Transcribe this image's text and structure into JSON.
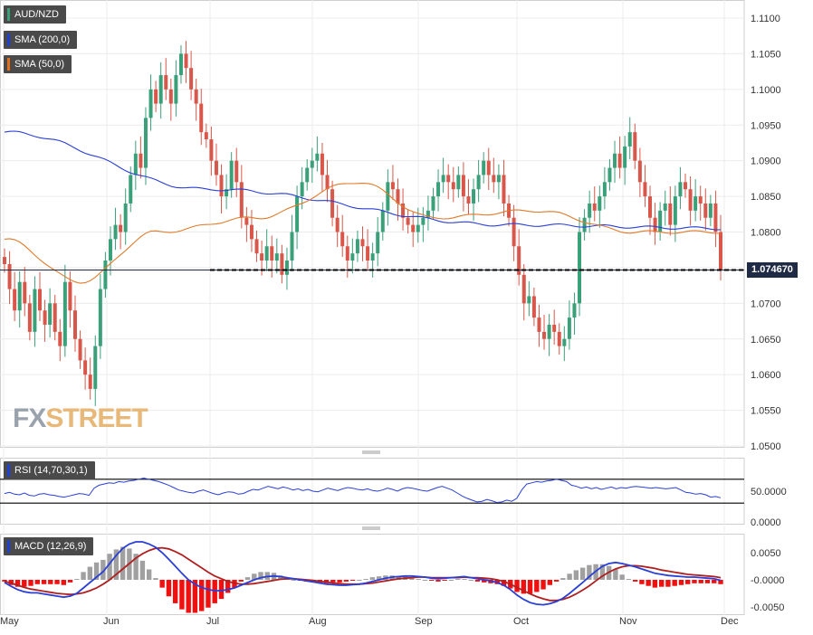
{
  "legends": {
    "pair": {
      "label": "AUD/NZD",
      "color": "#3aa07a"
    },
    "sma200": {
      "label": "SMA (200,0)",
      "color": "#2040d0"
    },
    "sma50": {
      "label": "SMA (50,0)",
      "color": "#e07020"
    },
    "rsi": {
      "label": "RSI (14,70,30,1)",
      "color": "#2040d0"
    },
    "macd": {
      "label": "MACD (12,26,9)",
      "color": "#2040d0"
    }
  },
  "logo": {
    "fx": "FX",
    "street": "STREET"
  },
  "current_price_label": "1.074670",
  "colors": {
    "up": "#3aa07a",
    "down": "#d9574a",
    "sma200": "#2a3fd6",
    "sma50": "#e07a2a",
    "macd_line": "#2a3fd6",
    "signal_line": "#b02020",
    "hist_pos": "#a0a0a0",
    "hist_neg": "#f01010"
  },
  "chart_data": [
    {
      "type": "candlestick",
      "title": "AUD/NZD",
      "ylim": [
        1.05,
        1.112
      ],
      "y_ticks": [
        "1.1100",
        "1.1050",
        "1.1000",
        "1.0950",
        "1.0900",
        "1.0850",
        "1.0800",
        "1.0750",
        "1.0700",
        "1.0650",
        "1.0600",
        "1.0550",
        "1.0500"
      ],
      "x_ticks": [
        "May",
        "Jun",
        "Jul",
        "Aug",
        "Sep",
        "Oct",
        "Nov",
        "Dec"
      ],
      "current_price": 1.07467,
      "closes": [
        1.0755,
        1.072,
        1.069,
        1.073,
        1.07,
        1.066,
        1.072,
        1.069,
        1.067,
        1.07,
        1.066,
        1.064,
        1.073,
        1.069,
        1.065,
        1.062,
        1.06,
        1.058,
        1.064,
        1.072,
        1.076,
        1.079,
        1.081,
        1.08,
        1.084,
        1.088,
        1.091,
        1.089,
        1.096,
        1.1,
        1.098,
        1.102,
        1.1,
        1.098,
        1.102,
        1.105,
        1.103,
        1.1,
        1.098,
        1.094,
        1.093,
        1.09,
        1.088,
        1.085,
        1.086,
        1.09,
        1.087,
        1.082,
        1.081,
        1.079,
        1.077,
        1.076,
        1.078,
        1.076,
        1.077,
        1.074,
        1.076,
        1.08,
        1.085,
        1.087,
        1.089,
        1.09,
        1.091,
        1.088,
        1.086,
        1.082,
        1.08,
        1.078,
        1.076,
        1.077,
        1.079,
        1.078,
        1.076,
        1.077,
        1.08,
        1.083,
        1.087,
        1.086,
        1.084,
        1.082,
        1.081,
        1.08,
        1.081,
        1.082,
        1.083,
        1.085,
        1.087,
        1.088,
        1.087,
        1.086,
        1.088,
        1.085,
        1.084,
        1.086,
        1.088,
        1.09,
        1.088,
        1.087,
        1.088,
        1.084,
        1.082,
        1.078,
        1.074,
        1.07,
        1.071,
        1.068,
        1.066,
        1.065,
        1.067,
        1.066,
        1.064,
        1.065,
        1.068,
        1.07,
        1.08,
        1.082,
        1.084,
        1.083,
        1.085,
        1.087,
        1.089,
        1.091,
        1.089,
        1.092,
        1.094,
        1.09,
        1.087,
        1.085,
        1.082,
        1.08,
        1.083,
        1.084,
        1.081,
        1.085,
        1.087,
        1.086,
        1.083,
        1.085,
        1.084,
        1.082,
        1.084,
        1.08,
        1.0747
      ],
      "series": [
        {
          "name": "SMA (200,0)",
          "anchors_x": [
            0,
            40,
            100,
            145
          ],
          "anchors_y": [
            1.094,
            1.086,
            1.081,
            1.0805
          ]
        },
        {
          "name": "SMA (50,0)",
          "anchors_x": [
            0,
            15,
            30,
            50,
            70,
            85,
            105,
            125,
            145
          ],
          "anchors_y": [
            1.079,
            1.073,
            1.08,
            1.082,
            1.087,
            1.082,
            1.083,
            1.08,
            1.08
          ]
        }
      ]
    },
    {
      "type": "line",
      "title": "RSI (14,70,30,1)",
      "ylim": [
        0,
        100
      ],
      "y_ticks": [
        "50.0000",
        "0.0000"
      ],
      "levels": [
        70,
        30
      ],
      "values": [
        46,
        48,
        45,
        44,
        47,
        43,
        42,
        45,
        46,
        44,
        43,
        41,
        40,
        42,
        44,
        46,
        45,
        43,
        55,
        60,
        62,
        64,
        63,
        66,
        65,
        67,
        68,
        70,
        72,
        70,
        68,
        66,
        63,
        60,
        56,
        52,
        50,
        48,
        47,
        50,
        52,
        49,
        46,
        44,
        47,
        49,
        48,
        45,
        46,
        50,
        53,
        52,
        55,
        58,
        56,
        54,
        57,
        55,
        52,
        54,
        51,
        53,
        50,
        49,
        52,
        55,
        53,
        51,
        54,
        56,
        55,
        53,
        52,
        54,
        51,
        50,
        52,
        55,
        53,
        50,
        54,
        56,
        55,
        53,
        51,
        50,
        53,
        56,
        58,
        55,
        52,
        47,
        42,
        38,
        35,
        32,
        33,
        36,
        34,
        31,
        32,
        35,
        33,
        38,
        52,
        62,
        64,
        66,
        65,
        67,
        68,
        70,
        68,
        66,
        60,
        58,
        55,
        57,
        54,
        56,
        53,
        55,
        57,
        54,
        56,
        55,
        57,
        58,
        57,
        56,
        55,
        56,
        55,
        54,
        55,
        56,
        52,
        48,
        47,
        45,
        46,
        44,
        40,
        41,
        39
      ]
    },
    {
      "type": "bar",
      "title": "MACD (12,26,9)",
      "ylim": [
        -0.0065,
        0.0085
      ],
      "y_ticks": [
        "0.0050",
        "-0.0000",
        "-0.0050"
      ],
      "macd": [
        -0.0005,
        -0.0012,
        -0.0018,
        -0.0022,
        -0.0024,
        -0.0024,
        -0.0026,
        -0.0028,
        -0.003,
        -0.0032,
        -0.003,
        -0.0025,
        -0.0015,
        -0.0005,
        0.0005,
        0.0015,
        0.003,
        0.0045,
        0.0058,
        0.0066,
        0.007,
        0.007,
        0.0066,
        0.006,
        0.005,
        0.0038,
        0.0025,
        0.0012,
        0.0,
        -0.0008,
        -0.0014,
        -0.0018,
        -0.002,
        -0.002,
        -0.0018,
        -0.0015,
        -0.001,
        -0.0005,
        0.0,
        0.0004,
        0.0006,
        0.0007,
        0.0006,
        0.0004,
        0.0002,
        0.0,
        -0.0002,
        -0.0004,
        -0.0006,
        -0.0008,
        -0.0009,
        -0.001,
        -0.001,
        -0.0009,
        -0.0008,
        -0.0006,
        -0.0003,
        0.0,
        0.0003,
        0.0005,
        0.0006,
        0.0007,
        0.0007,
        0.0006,
        0.0005,
        0.0003,
        0.0002,
        0.0003,
        0.0004,
        0.0005,
        0.0006,
        0.0004,
        0.0002,
        0.0,
        -0.0002,
        -0.0005,
        -0.001,
        -0.0018,
        -0.0028,
        -0.0036,
        -0.0042,
        -0.0045,
        -0.0046,
        -0.0044,
        -0.004,
        -0.0034,
        -0.0025,
        -0.0015,
        -0.0005,
        0.0006,
        0.0016,
        0.0025,
        0.003,
        0.0032,
        0.003,
        0.0027,
        0.0024,
        0.002,
        0.0016,
        0.0012,
        0.001,
        0.0008,
        0.0007,
        0.0006,
        0.0005,
        0.0005,
        0.0004,
        0.0003,
        0.0002,
        -0.0001
      ],
      "signal": [
        -0.0003,
        -0.0006,
        -0.001,
        -0.0014,
        -0.0017,
        -0.0019,
        -0.0021,
        -0.0023,
        -0.0025,
        -0.0026,
        -0.0027,
        -0.0026,
        -0.0024,
        -0.002,
        -0.0015,
        -0.0008,
        0.0,
        0.001,
        0.002,
        0.003,
        0.004,
        0.0048,
        0.0054,
        0.0058,
        0.0059,
        0.0057,
        0.0052,
        0.0046,
        0.0038,
        0.003,
        0.0022,
        0.0014,
        0.0007,
        0.0002,
        -0.0003,
        -0.0006,
        -0.0008,
        -0.0008,
        -0.0007,
        -0.0005,
        -0.0003,
        -0.0001,
        0.0001,
        0.0002,
        0.0002,
        0.0001,
        0.0,
        -0.0001,
        -0.0003,
        -0.0004,
        -0.0006,
        -0.0007,
        -0.0008,
        -0.0008,
        -0.0008,
        -0.0007,
        -0.0006,
        -0.0004,
        -0.0002,
        0.0,
        0.0002,
        0.0003,
        0.0004,
        0.0005,
        0.0005,
        0.0004,
        0.0004,
        0.0004,
        0.0004,
        0.0004,
        0.0005,
        0.0004,
        0.0004,
        0.0003,
        0.0002,
        0.0,
        -0.0003,
        -0.0008,
        -0.0014,
        -0.002,
        -0.0026,
        -0.0031,
        -0.0035,
        -0.0038,
        -0.0038,
        -0.0036,
        -0.0032,
        -0.0026,
        -0.0019,
        -0.0011,
        -0.0002,
        0.0007,
        0.0014,
        0.002,
        0.0024,
        0.0026,
        0.0026,
        0.0025,
        0.0023,
        0.0021,
        0.0018,
        0.0016,
        0.0014,
        0.0012,
        0.001,
        0.0009,
        0.0008,
        0.0007,
        0.0006,
        0.0004
      ]
    }
  ]
}
